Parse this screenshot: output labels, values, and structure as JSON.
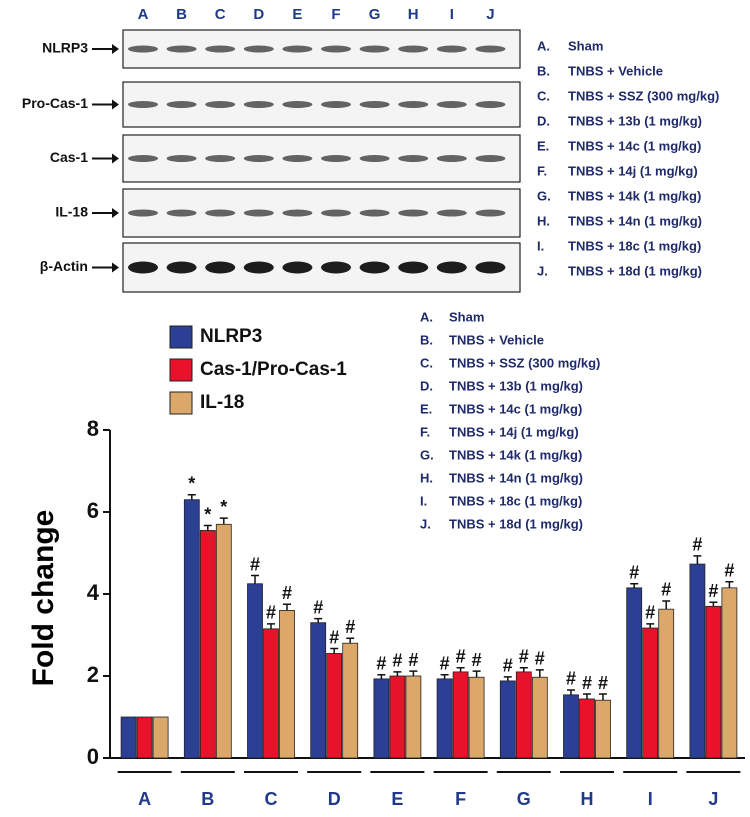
{
  "blot": {
    "lanes": [
      "A",
      "B",
      "C",
      "D",
      "E",
      "F",
      "G",
      "H",
      "I",
      "J"
    ],
    "rows": [
      "NLRP3",
      "Pro-Cas-1",
      "Cas-1",
      "IL-18",
      "β-Actin"
    ],
    "legend": [
      {
        "letter": "A.",
        "text": "Sham"
      },
      {
        "letter": "B.",
        "text": "TNBS + Vehicle"
      },
      {
        "letter": "C.",
        "text": "TNBS + SSZ (300 mg/kg)"
      },
      {
        "letter": "D.",
        "text": "TNBS + 13b (1 mg/kg)"
      },
      {
        "letter": "E.",
        "text": "TNBS + 14c (1 mg/kg)"
      },
      {
        "letter": "F.",
        "text": "TNBS + 14j (1 mg/kg)"
      },
      {
        "letter": "G.",
        "text": "TNBS + 14k (1 mg/kg)"
      },
      {
        "letter": "H.",
        "text": "TNBS + 14n (1 mg/kg)"
      },
      {
        "letter": "I.",
        "text": "TNBS + 18c (1 mg/kg)"
      },
      {
        "letter": "J.",
        "text": "TNBS + 18d (1 mg/kg)"
      }
    ]
  },
  "chart_data": {
    "type": "bar",
    "ylabel": "Fold change",
    "categories": [
      "A",
      "B",
      "C",
      "D",
      "E",
      "F",
      "G",
      "H",
      "I",
      "J"
    ],
    "ylim": [
      0,
      8
    ],
    "yticks": [
      0,
      2,
      4,
      6,
      8
    ],
    "series": [
      {
        "name": "NLRP3",
        "color": "#2b3f95",
        "values": [
          1,
          6.3,
          4.25,
          3.3,
          1.93,
          1.93,
          1.88,
          1.54,
          4.15,
          4.73
        ],
        "errors": [
          0,
          0.12,
          0.2,
          0.1,
          0.1,
          0.1,
          0.1,
          0.12,
          0.1,
          0.2
        ],
        "annotations": [
          null,
          "*",
          "#",
          "#",
          "#",
          "#",
          "#",
          "#",
          "#",
          "#"
        ]
      },
      {
        "name": "Cas-1/Pro-Cas-1",
        "color": "#e8122a",
        "values": [
          1,
          5.55,
          3.15,
          2.55,
          2.0,
          2.1,
          2.1,
          1.44,
          3.17,
          3.7
        ],
        "errors": [
          0,
          0.12,
          0.12,
          0.12,
          0.1,
          0.1,
          0.1,
          0.12,
          0.1,
          0.1
        ],
        "annotations": [
          null,
          "*",
          "#",
          "#",
          "#",
          "#",
          "#",
          "#",
          "#",
          "#"
        ]
      },
      {
        "name": "IL-18",
        "color": "#dba86a",
        "values": [
          1,
          5.7,
          3.6,
          2.8,
          2.0,
          1.97,
          1.97,
          1.41,
          3.63,
          4.15
        ],
        "errors": [
          0,
          0.15,
          0.15,
          0.12,
          0.12,
          0.15,
          0.18,
          0.15,
          0.2,
          0.15
        ],
        "annotations": [
          null,
          "*",
          "#",
          "#",
          "#",
          "#",
          "#",
          "#",
          "#",
          "#"
        ]
      }
    ],
    "group_legend": [
      {
        "letter": "A.",
        "text": "Sham"
      },
      {
        "letter": "B.",
        "text": "TNBS + Vehicle"
      },
      {
        "letter": "C.",
        "text": "TNBS + SSZ (300 mg/kg)"
      },
      {
        "letter": "D.",
        "text": "TNBS + 13b (1 mg/kg)"
      },
      {
        "letter": "E.",
        "text": "TNBS + 14c (1 mg/kg)"
      },
      {
        "letter": "F.",
        "text": "TNBS + 14j (1 mg/kg)"
      },
      {
        "letter": "G.",
        "text": "TNBS + 14k (1 mg/kg)"
      },
      {
        "letter": "H.",
        "text": "TNBS + 14n (1 mg/kg)"
      },
      {
        "letter": "I.",
        "text": "TNBS + 18c (1 mg/kg)"
      },
      {
        "letter": "J.",
        "text": "TNBS + 18d (1 mg/kg)"
      }
    ]
  }
}
